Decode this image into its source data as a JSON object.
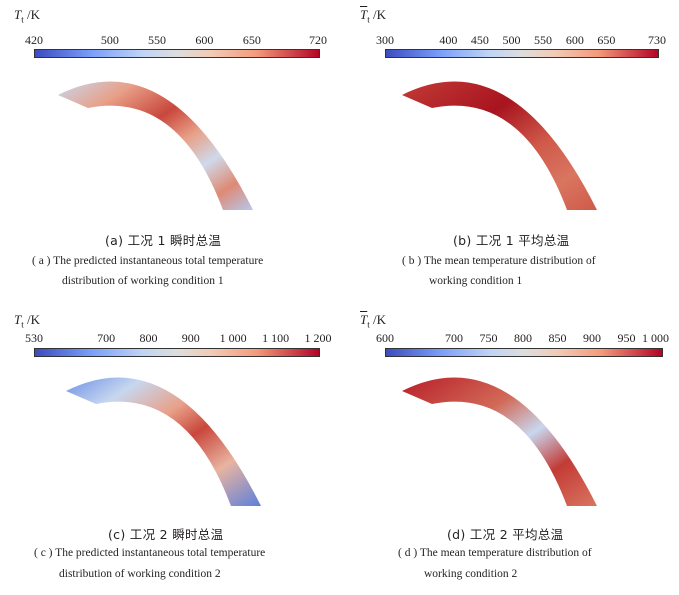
{
  "panels": [
    {
      "id": "a",
      "symbol": "T",
      "bar_symbol": false,
      "subscript": "t",
      "unit": "/K",
      "ticks": [
        "420",
        "500",
        "550",
        "600",
        "650",
        "720"
      ],
      "tick_values": [
        420,
        500,
        550,
        600,
        650,
        720
      ],
      "range": [
        420,
        720
      ],
      "caption_cn": "(a) 工况 1 瞬时总温",
      "caption_en_line1": "( a )  The predicted instantaneous total temperature",
      "caption_en_line2": "distribution of working condition 1"
    },
    {
      "id": "b",
      "symbol": "T",
      "bar_symbol": true,
      "subscript": "t",
      "unit": "/K",
      "ticks": [
        "300",
        "400",
        "450",
        "500",
        "550",
        "600",
        "650",
        "730"
      ],
      "tick_values": [
        300,
        400,
        450,
        500,
        550,
        600,
        650,
        730
      ],
      "range": [
        300,
        730
      ],
      "caption_cn": "(b) 工况 1 平均总温",
      "caption_en_line1": "( b )  The mean temperature distribution of",
      "caption_en_line2": "working condition 1"
    },
    {
      "id": "c",
      "symbol": "T",
      "bar_symbol": false,
      "subscript": "t",
      "unit": "/K",
      "ticks": [
        "530",
        "700",
        "800",
        "900",
        "1 000",
        "1 100",
        "1 200"
      ],
      "tick_values": [
        530,
        700,
        800,
        900,
        1000,
        1100,
        1200
      ],
      "range": [
        530,
        1200
      ],
      "caption_cn": "(c) 工况 2 瞬时总温",
      "caption_en_line1": "( c )  The predicted instantaneous total temperature",
      "caption_en_line2": "distribution of working condition 2"
    },
    {
      "id": "d",
      "symbol": "T",
      "bar_symbol": true,
      "subscript": "t",
      "unit": "/K",
      "ticks": [
        "600",
        "700",
        "750",
        "800",
        "850",
        "900",
        "950",
        "1 000"
      ],
      "tick_values": [
        600,
        700,
        750,
        800,
        850,
        900,
        950,
        1000
      ],
      "range": [
        600,
        1000
      ],
      "caption_cn": "(d) 工况 2 平均总温",
      "caption_en_line1": "( d )  The mean temperature distribution of",
      "caption_en_line2": "working condition 2"
    }
  ],
  "colormap": {
    "low": "#3b4cc0",
    "mid": "#dddddd",
    "high": "#b40426"
  }
}
